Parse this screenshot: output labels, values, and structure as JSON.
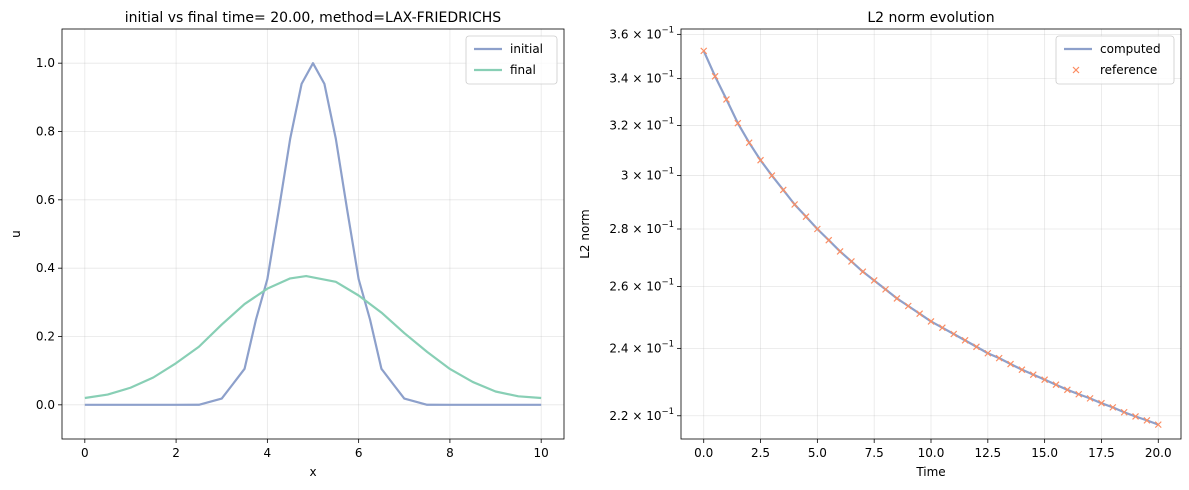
{
  "chart_data": [
    {
      "type": "line",
      "title": "initial vs final time= 20.00, method=LAX-FRIEDRICHS",
      "xlabel": "x",
      "ylabel": "u",
      "xlim": [
        -0.5,
        10.5
      ],
      "ylim": [
        -0.1,
        1.1
      ],
      "xticks": [
        0,
        2,
        4,
        6,
        8,
        10
      ],
      "xtick_labels": [
        "0",
        "2",
        "4",
        "6",
        "8",
        "10"
      ],
      "yticks": [
        0.0,
        0.2,
        0.4,
        0.6,
        0.8,
        1.0
      ],
      "ytick_labels": [
        "0.0",
        "0.2",
        "0.4",
        "0.6",
        "0.8",
        "1.0"
      ],
      "grid": true,
      "legend_position": "top-right",
      "series": [
        {
          "name": "initial",
          "color": "#8da0cb",
          "x": [
            0,
            0.5,
            1,
            1.5,
            2,
            2.5,
            3,
            3.25,
            3.5,
            3.75,
            4,
            4.25,
            4.5,
            4.75,
            5,
            5.25,
            5.5,
            5.75,
            6,
            6.25,
            6.5,
            6.75,
            7,
            7.5,
            8,
            8.5,
            9,
            9.5,
            10
          ],
          "y": [
            0.0,
            0.0,
            0.0,
            0.0,
            0.0,
            0.0002,
            0.0183,
            0.0617,
            0.1054,
            0.2494,
            0.3679,
            0.5698,
            0.7788,
            0.9394,
            1.0,
            0.9394,
            0.7788,
            0.5698,
            0.3679,
            0.2494,
            0.1054,
            0.0617,
            0.0183,
            0.0002,
            0.0,
            0.0,
            0.0,
            0.0,
            0.0
          ]
        },
        {
          "name": "final",
          "color": "#88cfb5",
          "x": [
            0,
            0.5,
            1,
            1.5,
            2,
            2.5,
            3,
            3.5,
            4,
            4.5,
            4.85,
            5.5,
            6,
            6.5,
            7,
            7.5,
            8,
            8.5,
            9,
            9.5,
            10
          ],
          "y": [
            0.02,
            0.03,
            0.05,
            0.08,
            0.122,
            0.17,
            0.235,
            0.295,
            0.34,
            0.37,
            0.377,
            0.36,
            0.32,
            0.27,
            0.21,
            0.155,
            0.105,
            0.067,
            0.039,
            0.025,
            0.02
          ]
        }
      ]
    },
    {
      "type": "line",
      "title": "L2 norm evolution",
      "xlabel": "Time",
      "ylabel": "L2 norm",
      "yscale": "log",
      "xlim": [
        -1.0,
        21.0
      ],
      "ylim": [
        0.2135,
        0.3625
      ],
      "xticks": [
        0.0,
        2.5,
        5.0,
        7.5,
        10.0,
        12.5,
        15.0,
        17.5,
        20.0
      ],
      "xtick_labels": [
        "0.0",
        "2.5",
        "5.0",
        "7.5",
        "10.0",
        "12.5",
        "15.0",
        "17.5",
        "20.0"
      ],
      "yticks": [
        0.22,
        0.24,
        0.26,
        0.28,
        0.3,
        0.32,
        0.34,
        0.36
      ],
      "ytick_mantissas": [
        "2.2",
        "2.4",
        "2.6",
        "2.8",
        "3",
        "3.2",
        "3.4",
        "3.6"
      ],
      "ytick_base": "× 10",
      "ytick_exponent": "−1",
      "grid": true,
      "legend_position": "top-right",
      "series": [
        {
          "name": "computed",
          "color": "#8da0cb",
          "marker": "line",
          "x": [
            0,
            0.5,
            1,
            1.5,
            2,
            2.5,
            3,
            3.5,
            4,
            4.5,
            5,
            5.5,
            6,
            6.5,
            7,
            7.5,
            8,
            8.5,
            9,
            9.5,
            10,
            10.5,
            11,
            11.5,
            12,
            12.5,
            13,
            13.5,
            14,
            14.5,
            15,
            15.5,
            16,
            16.5,
            17,
            17.5,
            18,
            18.5,
            19,
            19.5,
            20
          ],
          "y": [
            0.3524,
            0.341,
            0.331,
            0.321,
            0.313,
            0.306,
            0.3,
            0.2945,
            0.289,
            0.2845,
            0.28,
            0.276,
            0.272,
            0.2685,
            0.265,
            0.262,
            0.259,
            0.256,
            0.2535,
            0.251,
            0.2485,
            0.2465,
            0.2445,
            0.2425,
            0.2405,
            0.2385,
            0.237,
            0.2352,
            0.2335,
            0.232,
            0.2305,
            0.229,
            0.2275,
            0.2262,
            0.225,
            0.2236,
            0.2224,
            0.221,
            0.2198,
            0.2187,
            0.2175
          ]
        },
        {
          "name": "reference",
          "color": "#fc8d62",
          "marker": "x",
          "x": [
            0,
            0.5,
            1,
            1.5,
            2,
            2.5,
            3,
            3.5,
            4,
            4.5,
            5,
            5.5,
            6,
            6.5,
            7,
            7.5,
            8,
            8.5,
            9,
            9.5,
            10,
            10.5,
            11,
            11.5,
            12,
            12.5,
            13,
            13.5,
            14,
            14.5,
            15,
            15.5,
            16,
            16.5,
            17,
            17.5,
            18,
            18.5,
            19,
            19.5,
            20
          ],
          "y": [
            0.3524,
            0.341,
            0.331,
            0.321,
            0.313,
            0.306,
            0.3,
            0.2945,
            0.289,
            0.2845,
            0.28,
            0.276,
            0.272,
            0.2685,
            0.265,
            0.262,
            0.259,
            0.256,
            0.2535,
            0.251,
            0.2485,
            0.2465,
            0.2445,
            0.2425,
            0.2405,
            0.2385,
            0.237,
            0.2352,
            0.2335,
            0.232,
            0.2305,
            0.229,
            0.2275,
            0.2262,
            0.225,
            0.2236,
            0.2224,
            0.221,
            0.2198,
            0.2187,
            0.2175
          ]
        }
      ]
    }
  ]
}
